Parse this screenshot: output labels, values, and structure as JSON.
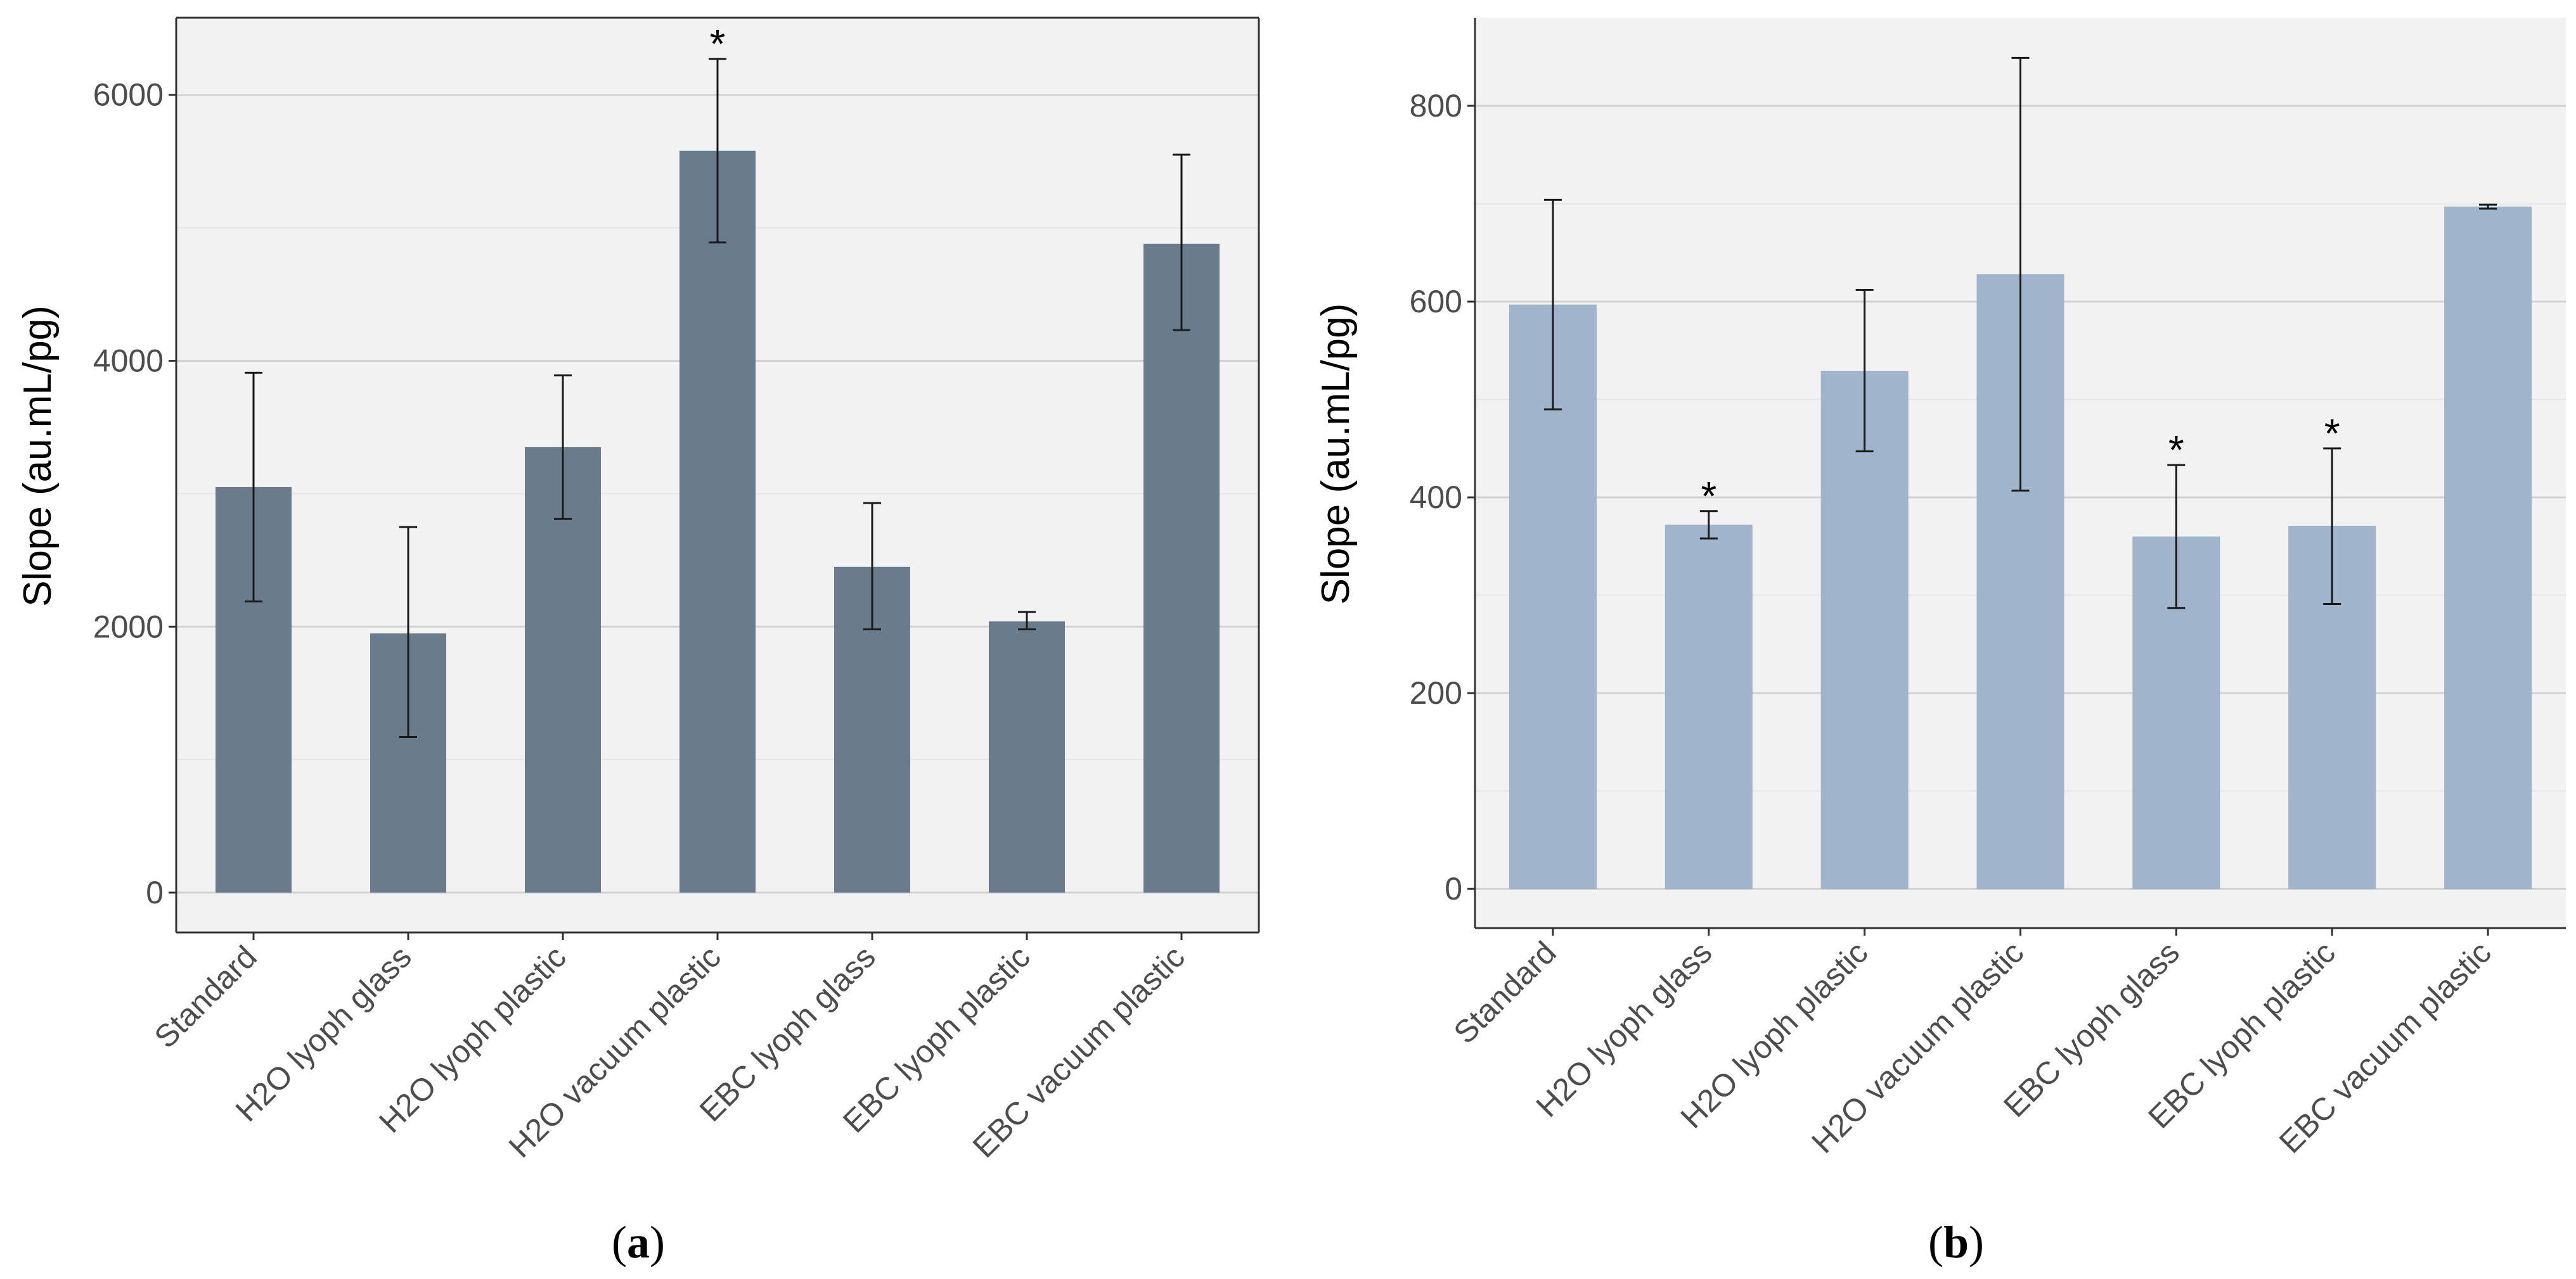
{
  "chart_data": [
    {
      "panel": "a",
      "caption": "(a)",
      "caption_letter": "a",
      "type": "bar",
      "ylabel": "Slope (au.mL/pg)",
      "xlabel": "",
      "ylim": [
        -300,
        6580
      ],
      "yticks": [
        0,
        2000,
        4000,
        6000
      ],
      "minor_grid": [
        1000,
        3000,
        5000
      ],
      "bar_color": "#6a7b8c",
      "categories": [
        "Standard",
        "H2O lyoph glass",
        "H2O lyoph plastic",
        "H2O vacuum plastic",
        "EBC lyoph glass",
        "EBC lyoph plastic",
        "EBC vacuum plastic"
      ],
      "values": [
        3050,
        1950,
        3350,
        5580,
        2450,
        2040,
        4880
      ],
      "error_low": [
        2190,
        1170,
        2810,
        4890,
        1980,
        1980,
        4230
      ],
      "error_high": [
        3910,
        2750,
        3890,
        6270,
        2930,
        2110,
        5550
      ],
      "significant": [
        false,
        false,
        false,
        true,
        false,
        false,
        false
      ],
      "marker": "*"
    },
    {
      "panel": "b",
      "caption": "(b)",
      "caption_letter": "b",
      "type": "bar",
      "ylabel": "Slope (au.mL/pg)",
      "xlabel": "",
      "ylim": [
        -40,
        890
      ],
      "yticks": [
        0,
        200,
        400,
        600,
        800
      ],
      "minor_grid": [
        100,
        300,
        500,
        700
      ],
      "bar_color": "#a0b4cc",
      "categories": [
        "Standard",
        "H2O lyoph glass",
        "H2O lyoph plastic",
        "H2O vacuum plastic",
        "EBC lyoph glass",
        "EBC lyoph plastic",
        "EBC vacuum plastic"
      ],
      "values": [
        597,
        372,
        529,
        628,
        360,
        371,
        697
      ],
      "error_low": [
        490,
        358,
        447,
        407,
        287,
        291,
        695
      ],
      "error_high": [
        704,
        386,
        612,
        849,
        433,
        450,
        699
      ],
      "significant": [
        false,
        true,
        false,
        false,
        true,
        true,
        false
      ],
      "marker": "*"
    }
  ]
}
